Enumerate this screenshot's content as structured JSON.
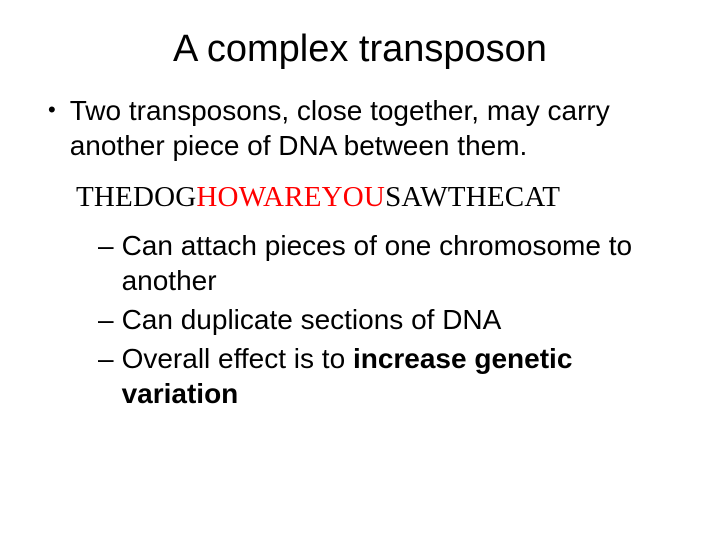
{
  "title": "A complex transposon",
  "bullet1": "Two transposons, close together, may carry another piece of DNA between them.",
  "dna": {
    "part1": "THEDOG",
    "part2": "HOWAREYOU",
    "part3": "SAWTHECAT",
    "color_outer": "#000000",
    "color_middle": "#ff0000",
    "font_family": "Times New Roman"
  },
  "sub1": "Can attach pieces of one chromosome to another",
  "sub2": "Can duplicate sections of DNA",
  "sub3_a": "Overall effect is to ",
  "sub3_b": "increase genetic variation",
  "style": {
    "background_color": "#ffffff",
    "text_color": "#000000",
    "title_fontsize": 38,
    "body_fontsize": 28,
    "dna_fontsize": 29,
    "bullet_char": "•",
    "dash_char": "–"
  }
}
